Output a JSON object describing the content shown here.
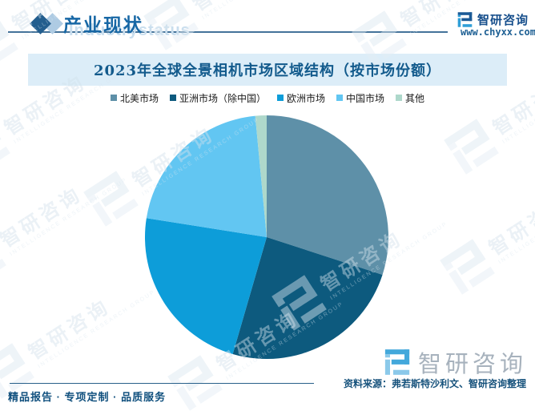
{
  "header": {
    "section_title": "产业现状",
    "watermark_text": "Industrystatus",
    "brand_name": "智研咨询",
    "brand_url": "www.chyxx.com"
  },
  "chart": {
    "title": "2023年全球全景相机市场区域结构（按市场份额）"
  },
  "chart_data": {
    "type": "pie",
    "title": "2023年全球全景相机市场区域结构（按市场份额）",
    "unit": "percent_market_share",
    "start_angle_deg": 0,
    "direction": "clockwise",
    "legend_position": "top",
    "data_labels_shown": false,
    "slices": [
      {
        "label": "北美市场",
        "value": 30,
        "color": "#5e90a8"
      },
      {
        "label": "亚洲市场（除中国）",
        "value": 24.5,
        "color": "#0d5a7e"
      },
      {
        "label": "欧洲市场",
        "value": 23,
        "color": "#0d9dd9"
      },
      {
        "label": "中国市场",
        "value": 21,
        "color": "#62c6f2"
      },
      {
        "label": "其他",
        "value": 1.5,
        "color": "#aed8cb"
      }
    ]
  },
  "watermark": {
    "brand": "智研咨询",
    "subtext": "INTELLIGENCE RESEARCH GROUP"
  },
  "footer": {
    "source": "资料来源：弗若斯特沙利文、智研咨询整理",
    "tagline": "精品报告 · 专项定制 · 品质服务"
  },
  "colors": {
    "header_text": "#1767a5",
    "title_box_bg": "#dcedf8",
    "title_text": "#125a8c",
    "header_rule": "#44739a",
    "footer_text": "#16527c"
  }
}
